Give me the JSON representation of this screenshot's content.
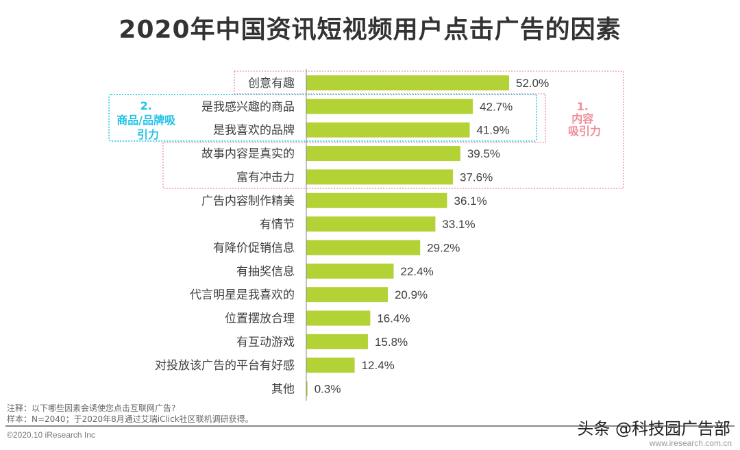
{
  "chart_data": {
    "type": "bar",
    "orientation": "horizontal",
    "title": "2020年中国资讯短视频用户点击广告的因素",
    "categories": [
      "创意有趣",
      "是我感兴趣的商品",
      "是我喜欢的品牌",
      "故事内容是真实的",
      "富有冲击力",
      "广告内容制作精美",
      "有情节",
      "有降价促销信息",
      "有抽奖信息",
      "代言明星是我喜欢的",
      "位置摆放合理",
      "有互动游戏",
      "对投放该广告的平台有好感",
      "其他"
    ],
    "values": [
      52.0,
      42.7,
      41.9,
      39.5,
      37.6,
      36.1,
      33.1,
      29.2,
      22.4,
      20.9,
      16.4,
      15.8,
      12.4,
      0.3
    ],
    "labels": [
      "52.0%",
      "42.7%",
      "41.9%",
      "39.5%",
      "37.6%",
      "36.1%",
      "33.1%",
      "29.2%",
      "22.4%",
      "20.9%",
      "16.4%",
      "15.8%",
      "12.4%",
      "0.3%"
    ],
    "unit": "%",
    "grid": false,
    "bar_color": "#b2d235",
    "annotations": [
      {
        "lines": [
          "1.",
          "内容",
          "吸引力"
        ],
        "color": "#f08c96"
      },
      {
        "lines": [
          "2.",
          "商品/品牌吸",
          "引力"
        ],
        "color": "#1fc3e8"
      }
    ]
  },
  "notes": {
    "note": "注释：以下哪些因素会诱使您点击互联网广告?",
    "sample": "样本：N=2040；于2020年8月通过艾瑞iClick社区联机调研获得。"
  },
  "footer": {
    "copyright": "©2020.10 iResearch Inc",
    "website": "www.iresearch.com.cn",
    "watermark": "头条 @科技园广告部"
  }
}
